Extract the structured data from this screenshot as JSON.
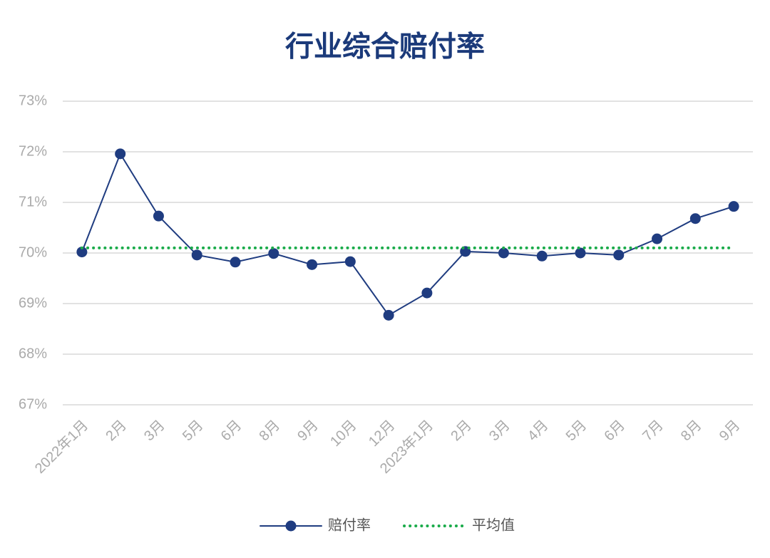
{
  "chart_data": {
    "type": "line",
    "title": "行业综合赔付率",
    "categories": [
      "2022年1月",
      "2月",
      "3月",
      "5月",
      "6月",
      "8月",
      "9月",
      "10月",
      "12月",
      "2023年1月",
      "2月",
      "3月",
      "4月",
      "5月",
      "6月",
      "7月",
      "8月",
      "9月"
    ],
    "series": [
      {
        "name": "赔付率",
        "color": "#1f3c80",
        "style": "solid-marker",
        "values": [
          70.02,
          71.96,
          70.73,
          69.96,
          69.82,
          69.99,
          69.77,
          69.83,
          68.77,
          69.21,
          70.03,
          70.0,
          69.94,
          70.0,
          69.96,
          70.28,
          70.68,
          70.92
        ]
      },
      {
        "name": "平均值",
        "color": "#1aab4a",
        "style": "dotted",
        "values": [
          70.1,
          70.1,
          70.1,
          70.1,
          70.1,
          70.1,
          70.1,
          70.1,
          70.1,
          70.1,
          70.1,
          70.1,
          70.1,
          70.1,
          70.1,
          70.1,
          70.1,
          70.1
        ]
      }
    ],
    "ylim": [
      67,
      73
    ],
    "yticks": [
      {
        "value": 67,
        "label": "67%"
      },
      {
        "value": 68,
        "label": "68%"
      },
      {
        "value": 69,
        "label": "69%"
      },
      {
        "value": 70,
        "label": "70%"
      },
      {
        "value": 71,
        "label": "71%"
      },
      {
        "value": 72,
        "label": "72%"
      },
      {
        "value": 73,
        "label": "73%"
      }
    ],
    "grid": true,
    "legend": "bottom"
  }
}
